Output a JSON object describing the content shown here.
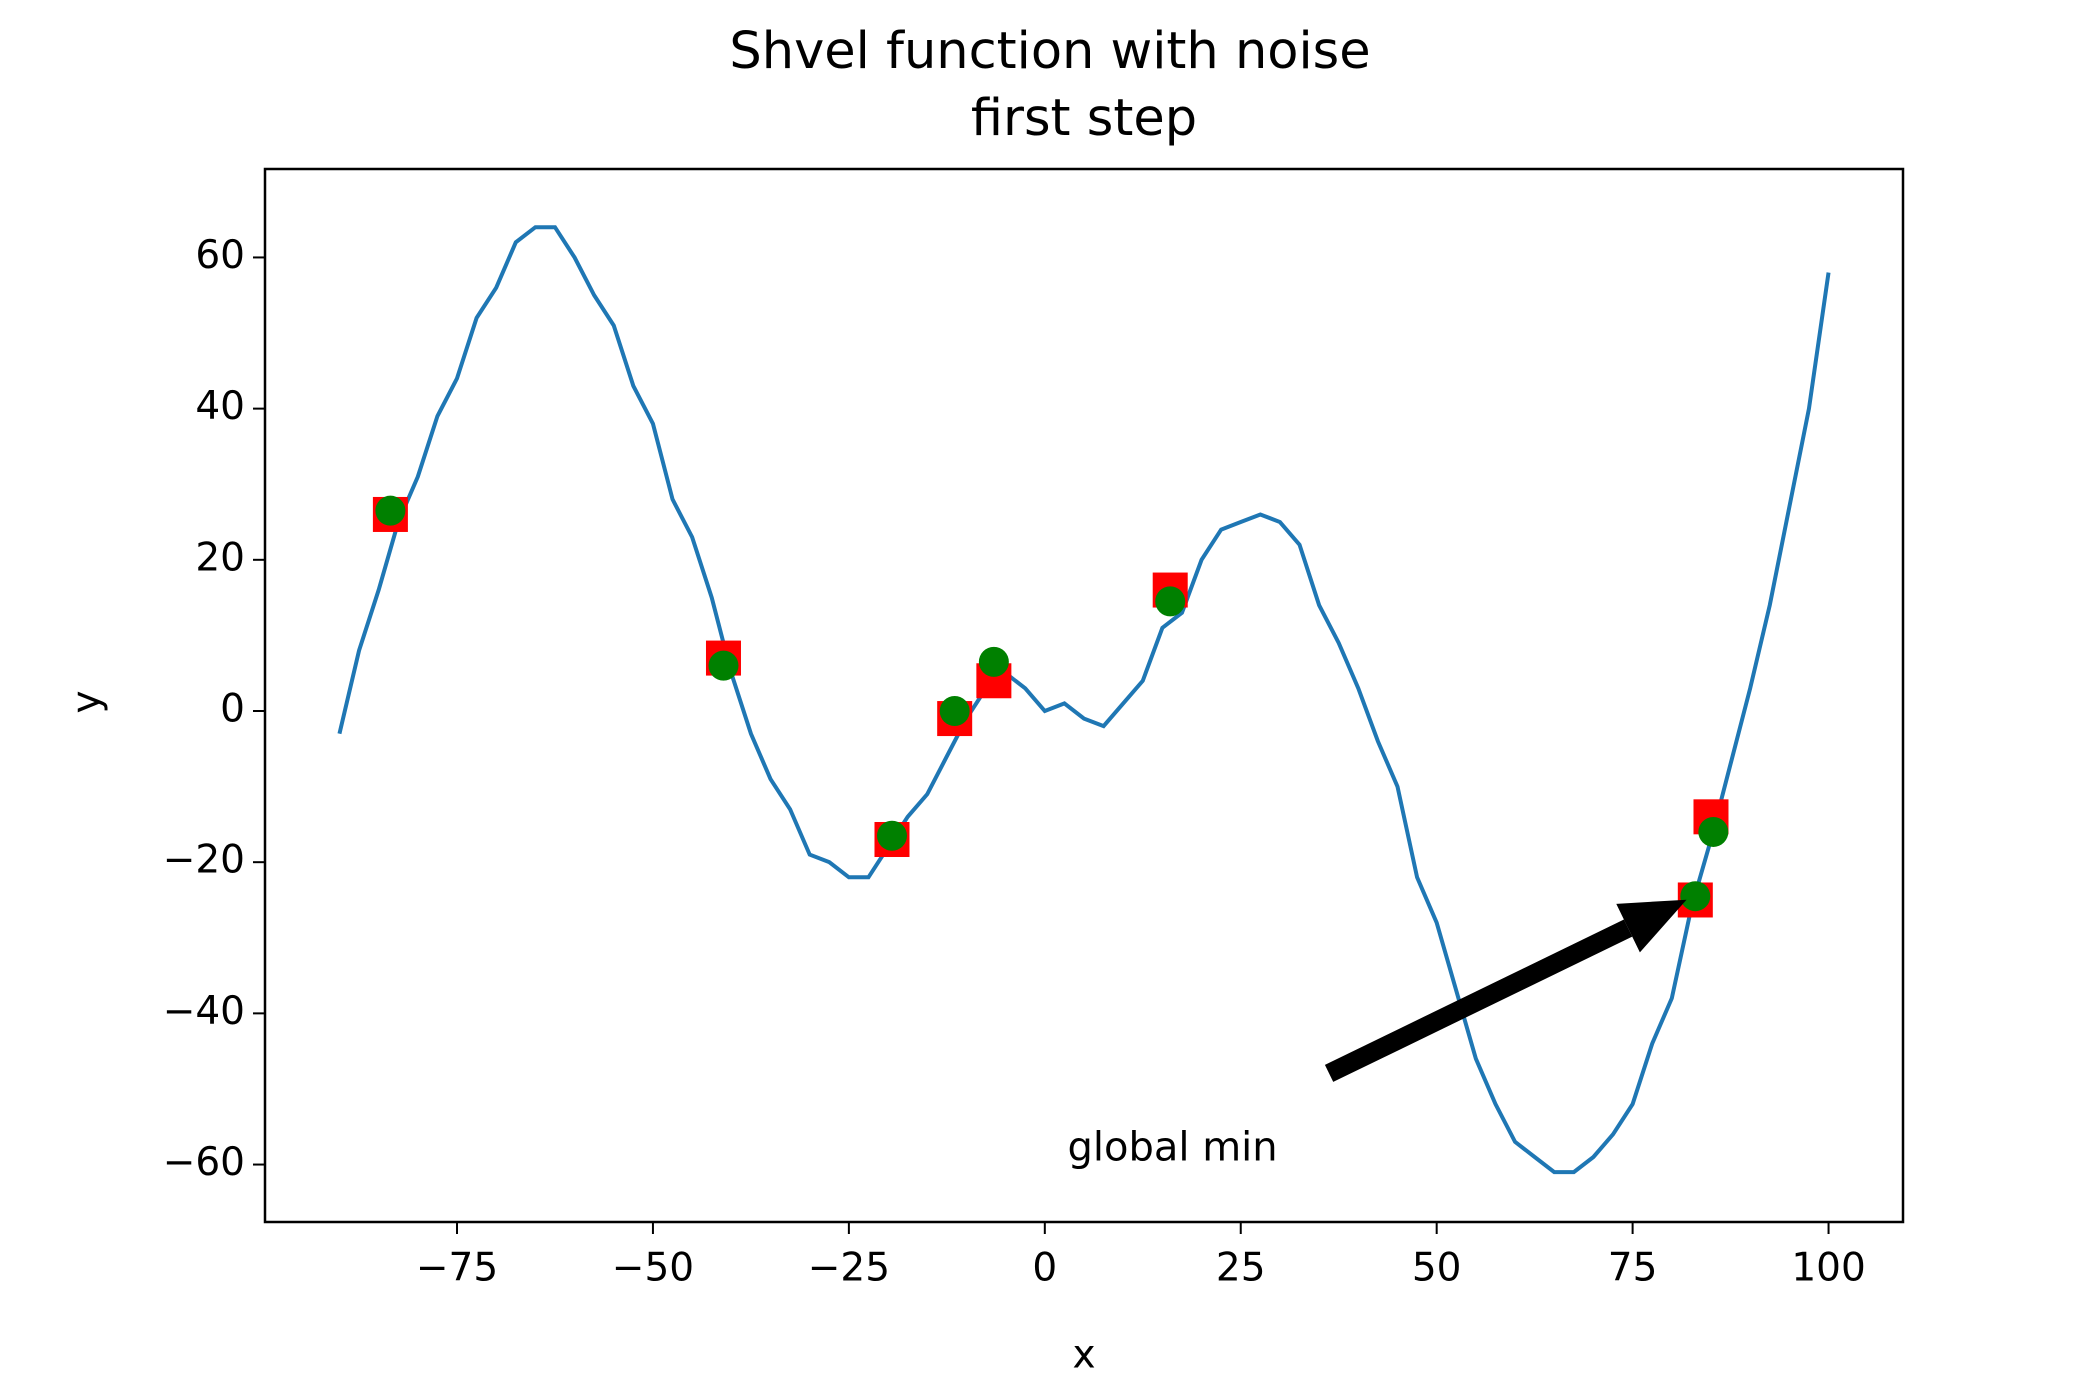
{
  "chart_data": {
    "type": "line",
    "title": "Shvel function with noise",
    "subtitle": "first step",
    "subtitle_color": "#ff0000",
    "x_label": "x",
    "y_label": "y",
    "xlim": [
      -99.5,
      109.5
    ],
    "ylim": [
      -67.6,
      71.7
    ],
    "xticks": [
      {
        "value": -75,
        "label": "−75"
      },
      {
        "value": -50,
        "label": "−50"
      },
      {
        "value": -25,
        "label": "−25"
      },
      0,
      25,
      50,
      75,
      100
    ],
    "yticks": [
      {
        "value": -60,
        "label": "−60"
      },
      {
        "value": -40,
        "label": "−40"
      },
      {
        "value": -20,
        "label": "−20"
      },
      0,
      20,
      40,
      60
    ],
    "grid": false,
    "series": [
      {
        "type": "line",
        "color": "#1f77b4",
        "x": [
          -90,
          -87.5,
          -85,
          -82.5,
          -80,
          -77.5,
          -75,
          -72.5,
          -70,
          -67.5,
          -65,
          -62.5,
          -60,
          -57.5,
          -55,
          -52.5,
          -50,
          -47.5,
          -45,
          -42.5,
          -40,
          -37.5,
          -35,
          -32.5,
          -30,
          -27.5,
          -25,
          -22.5,
          -20,
          -17.5,
          -15,
          -12.5,
          -10,
          -7.5,
          -5,
          -2.5,
          0,
          2.5,
          5,
          7.5,
          10,
          12.5,
          15,
          17.5,
          20,
          22.5,
          25,
          27.5,
          30,
          32.5,
          35,
          37.5,
          40,
          42.5,
          45,
          47.5,
          50,
          52.5,
          55,
          57.5,
          60,
          62.5,
          65,
          67.5,
          70,
          72.5,
          75,
          77.5,
          80,
          82.5,
          85,
          87.5,
          90,
          92.5,
          95,
          97.5,
          100
        ],
        "values": [
          -3,
          8,
          16,
          25,
          31,
          39,
          44,
          52,
          56,
          62,
          64,
          64,
          60,
          55,
          51,
          43,
          38,
          28,
          23,
          15,
          5,
          -3,
          -9,
          -13,
          -19,
          -20,
          -22,
          -22,
          -18,
          -14,
          -11,
          -6,
          -1,
          3,
          5,
          3,
          0,
          1,
          -1,
          -2,
          1,
          4,
          11,
          13,
          20,
          24,
          25,
          26,
          25,
          22,
          14,
          9,
          3,
          -4,
          -10,
          -22,
          -28,
          -37,
          -46,
          -52,
          -57,
          -59,
          -61,
          -61,
          -59,
          -56,
          -52,
          -44,
          -38,
          -26,
          -17,
          -7,
          3,
          14,
          27,
          40,
          58
        ]
      },
      {
        "type": "square",
        "color": "#ff0000",
        "x": [
          -83.5,
          -41,
          -19.5,
          -11.5,
          -6.5,
          16,
          85,
          83
        ],
        "values": [
          26,
          7,
          -17,
          -1,
          4,
          16,
          -14,
          -25
        ]
      },
      {
        "type": "dot",
        "color": "#008000",
        "x": [
          -83.5,
          -41,
          -19.5,
          -11.5,
          -6.5,
          16,
          85.3,
          83
        ],
        "values": [
          26.5,
          6,
          -16.5,
          0,
          6.5,
          14.5,
          -16,
          -24.5
        ]
      }
    ],
    "annotation": {
      "text": "global min",
      "xy": [
        82.8,
        -24.5
      ],
      "xytext": [
        16.3,
        -58
      ]
    }
  }
}
